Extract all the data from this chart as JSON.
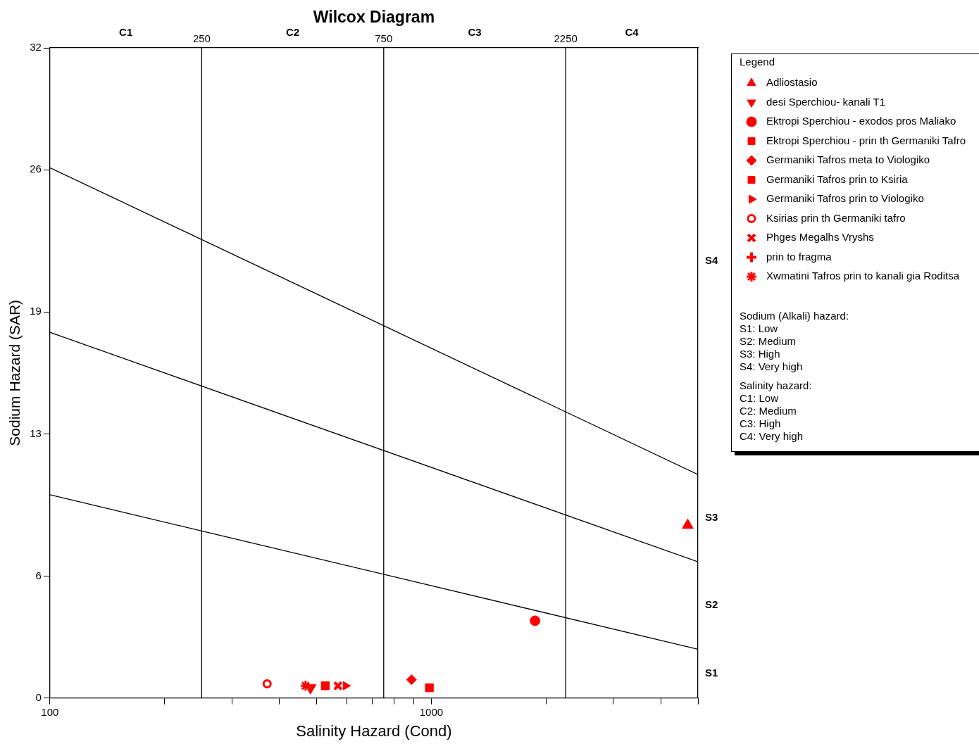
{
  "chart_data": {
    "type": "scatter",
    "title": "Wilcox Diagram",
    "xlabel": "Salinity Hazard (Cond)",
    "ylabel": "Sodium Hazard (SAR)",
    "legend_title": "Legend",
    "legend": "right",
    "log": "x",
    "grid": false,
    "xlim": [
      100,
      5000
    ],
    "xticks": [
      100,
      {
        "value": 200,
        "label": null
      },
      {
        "value": 300,
        "label": null
      },
      {
        "value": 400,
        "label": null
      },
      {
        "value": 500,
        "label": null
      },
      {
        "value": 600,
        "label": null
      },
      {
        "value": 700,
        "label": null
      },
      {
        "value": 800,
        "label": null
      },
      {
        "value": 900,
        "label": null
      },
      1000,
      {
        "value": 2000,
        "label": null
      },
      {
        "value": 3000,
        "label": null
      },
      {
        "value": 4000,
        "label": null
      },
      {
        "value": 5000,
        "label": null
      }
    ],
    "ylim": [
      0,
      32
    ],
    "yticks": [
      0,
      6,
      13,
      19,
      26,
      32
    ],
    "ref_lines": [
      {
        "axis": "x",
        "value": 250,
        "label": "250",
        "color": "#000000"
      },
      {
        "axis": "x",
        "value": 750,
        "label": "750",
        "color": "#000000"
      },
      {
        "axis": "x",
        "value": 2250,
        "label": "2250",
        "color": "#000000"
      }
    ],
    "series": [
      {
        "type": "line",
        "color": "#000000",
        "marker": "none",
        "x": [
          100,
          5000
        ],
        "values": [
          10,
          2.4
        ]
      },
      {
        "type": "line",
        "color": "#000000",
        "marker": "none",
        "x": [
          100,
          5000
        ],
        "values": [
          18,
          6.7
        ]
      },
      {
        "type": "line",
        "color": "#000000",
        "marker": "none",
        "x": [
          100,
          5000
        ],
        "values": [
          26.1,
          11
        ]
      },
      {
        "name": "Adliostasio",
        "color": "#ff0000",
        "marker": "triangle",
        "x": [
          4700
        ],
        "values": [
          8.5
        ]
      },
      {
        "name": "desi Sperchiou- kanali T1",
        "color": "#ff0000",
        "marker": "triangle-down",
        "x": [
          482
        ],
        "values": [
          0.5
        ]
      },
      {
        "name": "Ektropi Sperchiou - exodos pros Maliako",
        "color": "#ff0000",
        "marker": "circle",
        "x": [
          1870
        ],
        "values": [
          3.8
        ]
      },
      {
        "name": "Ektropi Sperchiou - prin th Germaniki Tafro",
        "color": "#ff0000",
        "marker": "square",
        "x": [
          527
        ],
        "values": [
          0.6
        ]
      },
      {
        "name": "Germaniki Tafros meta to Viologiko",
        "color": "#ff0000",
        "marker": "diamond",
        "x": [
          887
        ],
        "values": [
          0.9
        ]
      },
      {
        "name": "Germaniki Tafros prin to Ksiria",
        "color": "#ff0000",
        "marker": "square",
        "x": [
          988
        ],
        "values": [
          0.5
        ]
      },
      {
        "name": "Germaniki Tafros prin to Viologiko",
        "color": "#ff0000",
        "marker": "triangle-right",
        "x": [
          596
        ],
        "values": [
          0.6
        ]
      },
      {
        "name": "Ksirias prin th Germaniki tafro",
        "color": "#ff0000",
        "marker": "circle-dot",
        "x": [
          371
        ],
        "values": [
          0.7
        ]
      },
      {
        "name": "Phges Megalhs Vryshs",
        "color": "#ff0000",
        "marker": "x",
        "x": [
          569
        ],
        "values": [
          0.6
        ]
      },
      {
        "name": "prin to fragma",
        "color": "#ff0000",
        "marker": "plus",
        "x": [
          null
        ],
        "values": [
          null
        ]
      },
      {
        "name": "Xwmatini Tafros prin to kanali gia Roditsa",
        "color": "#ff0000",
        "marker": "cross",
        "x": [
          468
        ],
        "values": [
          0.6
        ]
      }
    ],
    "annotations": [
      "C1",
      "C2",
      "C3",
      "C4",
      "S1",
      "S2",
      "S3",
      "S4",
      "Sodium (Alkali) hazard:",
      "S1: Low",
      "S2: Medium",
      "S3: High",
      "S4: Very high",
      "Salinity hazard:",
      "C1: Low",
      "C2: Medium",
      "C3: High",
      "C4: Very high"
    ]
  }
}
